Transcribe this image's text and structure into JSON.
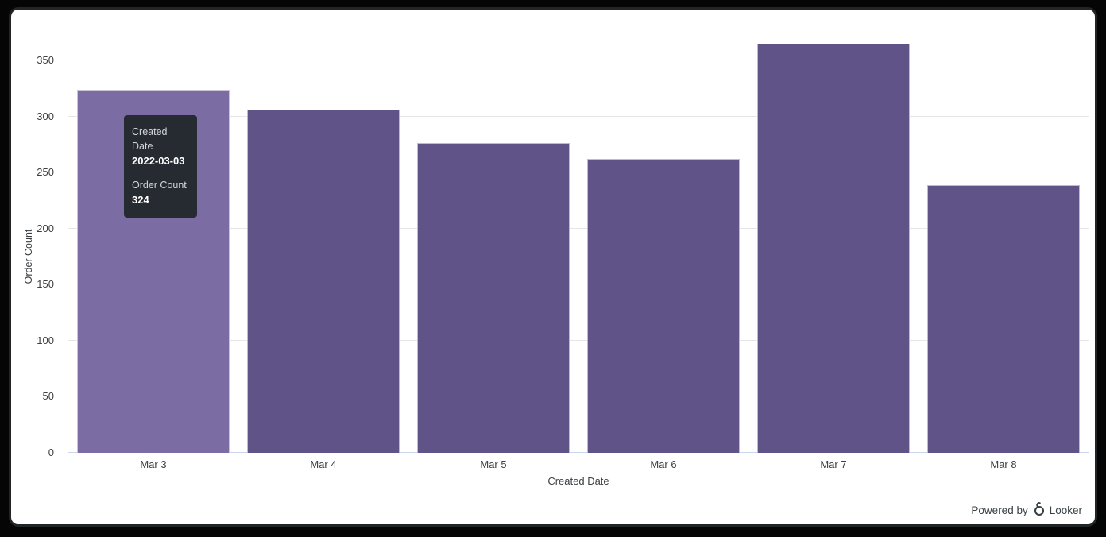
{
  "chart_data": {
    "type": "bar",
    "title": "",
    "categories": [
      "Mar 3",
      "Mar 4",
      "Mar 5",
      "Mar 6",
      "Mar 7",
      "Mar 8"
    ],
    "values": [
      324,
      306,
      276,
      262,
      365,
      239
    ],
    "xlabel": "Created Date",
    "ylabel": "Order Count",
    "ylim": [
      0,
      350
    ],
    "yticks": [
      0,
      50,
      100,
      150,
      200,
      250,
      300,
      350
    ],
    "grid": true,
    "legend": "none",
    "hovered_index": 0
  },
  "tooltip": {
    "field1_label": "Created Date",
    "field1_value": "2022-03-03",
    "field2_label": "Order Count",
    "field2_value": "324"
  },
  "footer": {
    "powered_by": "Powered by",
    "brand": "Looker"
  },
  "colors": {
    "bar": "#5f5388",
    "bar_hover": "#7b6ca3",
    "tooltip_bg": "#262b31",
    "gridline": "#e6e6e6",
    "axis_line": "#ccd6eb",
    "axis_label": "#3c4043"
  }
}
